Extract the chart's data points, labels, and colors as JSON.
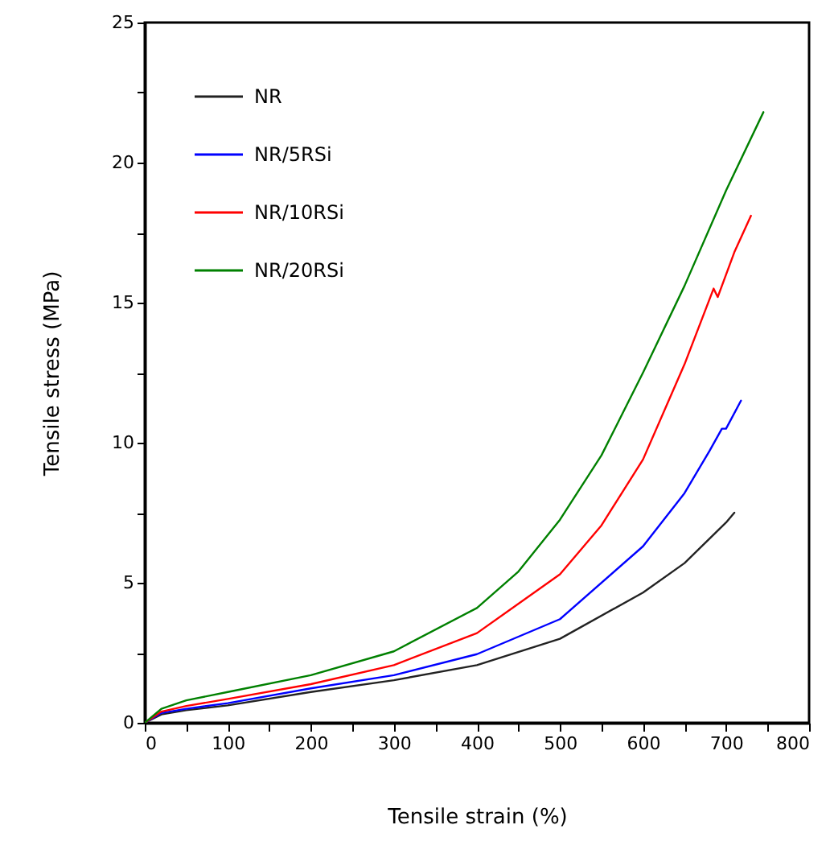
{
  "chart_data": {
    "type": "line",
    "xlabel": "Tensile strain (%)",
    "ylabel": "Tensile stress (MPa)",
    "xlim": [
      0,
      800
    ],
    "xticks": [
      0,
      {
        "value": 50,
        "label": null
      },
      100,
      {
        "value": 150,
        "label": null
      },
      200,
      {
        "value": 250,
        "label": null
      },
      300,
      {
        "value": 350,
        "label": null
      },
      400,
      {
        "value": 450,
        "label": null
      },
      500,
      {
        "value": 550,
        "label": null
      },
      600,
      {
        "value": 650,
        "label": null
      },
      700,
      {
        "value": 750,
        "label": null
      },
      800
    ],
    "ylim": [
      0,
      25
    ],
    "yticks": [
      0,
      {
        "value": 2.5,
        "label": null
      },
      5,
      {
        "value": 7.5,
        "label": null
      },
      10,
      {
        "value": 12.5,
        "label": null
      },
      15,
      {
        "value": 17.5,
        "label": null
      },
      20,
      {
        "value": 22.5,
        "label": null
      },
      25
    ],
    "grid": false,
    "legend": "top left",
    "marker": "none",
    "line_style": "solid",
    "series": [
      {
        "name": "NR",
        "color": "#222222",
        "x": [
          0,
          20,
          50,
          100,
          200,
          300,
          400,
          500,
          600,
          650,
          700,
          710
        ],
        "values": [
          0,
          0.3,
          0.45,
          0.62,
          1.1,
          1.52,
          2.06,
          3.0,
          4.65,
          5.7,
          7.15,
          7.5
        ]
      },
      {
        "name": "NR/5RSi",
        "color": "#0000ff",
        "x": [
          0,
          20,
          50,
          100,
          200,
          300,
          400,
          500,
          600,
          650,
          680,
          695,
          700,
          718
        ],
        "values": [
          0,
          0.35,
          0.5,
          0.7,
          1.23,
          1.7,
          2.45,
          3.7,
          6.3,
          8.2,
          9.7,
          10.5,
          10.5,
          11.5
        ]
      },
      {
        "name": "NR/10RSi",
        "color": "#ff0000",
        "x": [
          0,
          20,
          50,
          100,
          200,
          300,
          400,
          500,
          550,
          600,
          650,
          685,
          690,
          695,
          710,
          730
        ],
        "values": [
          0,
          0.4,
          0.6,
          0.85,
          1.38,
          2.06,
          3.2,
          5.3,
          7.05,
          9.4,
          12.8,
          15.5,
          15.2,
          15.6,
          16.8,
          18.1
        ]
      },
      {
        "name": "NR/20RSi",
        "color": "#008000",
        "x": [
          0,
          20,
          50,
          100,
          200,
          300,
          400,
          450,
          500,
          550,
          600,
          650,
          700,
          745
        ],
        "values": [
          0,
          0.5,
          0.8,
          1.1,
          1.7,
          2.55,
          4.1,
          5.4,
          7.25,
          9.55,
          12.5,
          15.6,
          19.0,
          21.8
        ]
      }
    ]
  }
}
